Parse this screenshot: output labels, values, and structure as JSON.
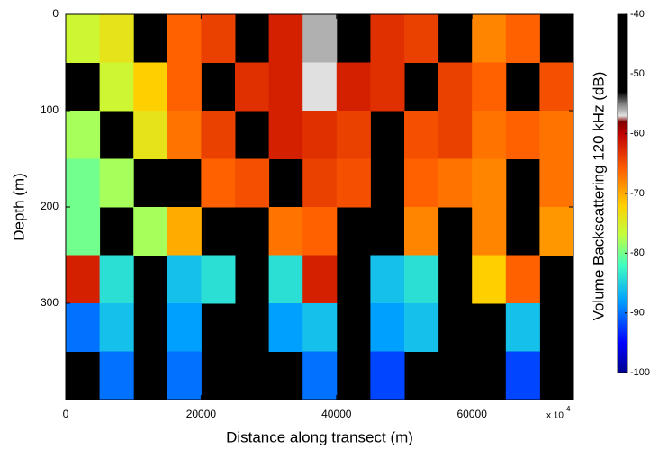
{
  "chart_data": {
    "type": "heatmap",
    "xlabel": "Distance along transect (m)",
    "ylabel": "Depth (m)",
    "colorbar_label": "Volume Backscattering 120 kHz (dB)",
    "x_multiplier": {
      "base": "x 10",
      "exponent": "4"
    },
    "xlim": [
      0,
      75000
    ],
    "xticks": [
      0,
      20000,
      40000,
      60000
    ],
    "ylim": [
      0,
      400
    ],
    "yticks": [
      0,
      100,
      200,
      300
    ],
    "y_inverted": true,
    "x_edges": [
      0,
      5000,
      10000,
      15000,
      20000,
      25000,
      30000,
      35000,
      40000,
      45000,
      50000,
      55000,
      60000,
      65000,
      70000,
      75000
    ],
    "y_edges": [
      0,
      50,
      100,
      150,
      200,
      250,
      300,
      350,
      400
    ],
    "z": [
      [
        -76,
        -74,
        null,
        -66,
        -64,
        null,
        -62,
        -56,
        null,
        -63,
        -64,
        null,
        -68,
        -66,
        null
      ],
      [
        null,
        -76,
        -72,
        -66,
        null,
        -63,
        -62,
        -57,
        -62,
        -63,
        null,
        -64,
        -66,
        null,
        -65
      ],
      [
        -78,
        null,
        -74,
        -67,
        -64,
        null,
        -62,
        -63,
        -64,
        null,
        -65,
        -64,
        -67,
        -66,
        -67
      ],
      [
        -80,
        -78,
        null,
        null,
        -66,
        -65,
        null,
        -64,
        -65,
        null,
        -66,
        -67,
        -68,
        null,
        -67
      ],
      [
        -80,
        null,
        -78,
        -70,
        null,
        null,
        -67,
        -66,
        null,
        null,
        -68,
        null,
        -68,
        null,
        -69
      ],
      [
        -62,
        -84,
        null,
        -86,
        -84,
        null,
        -84,
        -62,
        null,
        -86,
        -84,
        null,
        -72,
        -66,
        null
      ],
      [
        -90,
        -86,
        null,
        -88,
        null,
        null,
        -88,
        -86,
        null,
        -88,
        -86,
        null,
        null,
        -86,
        null
      ],
      [
        null,
        -90,
        null,
        -90,
        null,
        null,
        null,
        -90,
        null,
        -92,
        null,
        null,
        null,
        -92,
        null
      ]
    ],
    "null_color": "#000000",
    "colorbar_lim": [
      -100,
      -40
    ],
    "colorbar_ticks": [
      -40,
      -50,
      -60,
      -70,
      -80,
      -90,
      -100
    ],
    "colormap": [
      {
        "value": -100,
        "color": "#000090"
      },
      {
        "value": -95,
        "color": "#0000ff"
      },
      {
        "value": -88,
        "color": "#00a0ff"
      },
      {
        "value": -82,
        "color": "#40ffc0"
      },
      {
        "value": -77,
        "color": "#c0ff40"
      },
      {
        "value": -72,
        "color": "#ffd000"
      },
      {
        "value": -66,
        "color": "#ff6000"
      },
      {
        "value": -60,
        "color": "#c00000"
      },
      {
        "value": -58,
        "color": "#800000"
      },
      {
        "value": -57,
        "color": "#e0e0e0"
      },
      {
        "value": -55,
        "color": "#808080"
      },
      {
        "value": -53,
        "color": "#000000"
      },
      {
        "value": -40,
        "color": "#000000"
      }
    ]
  }
}
